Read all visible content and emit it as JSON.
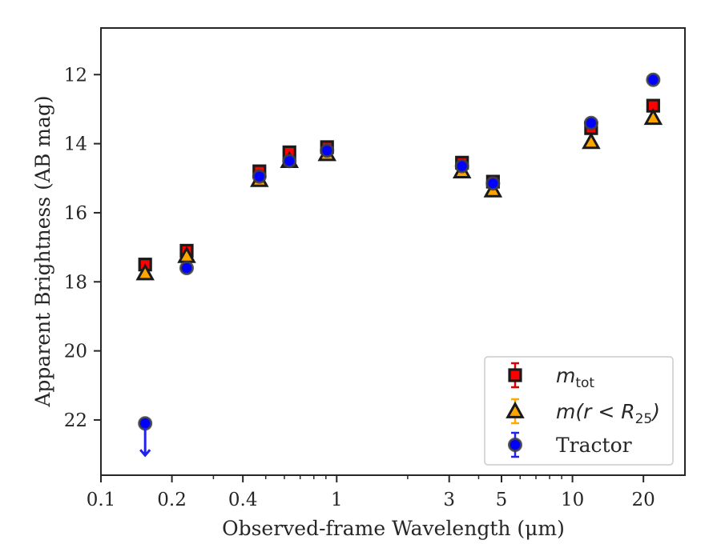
{
  "chart_data": {
    "type": "scatter",
    "title": "",
    "xlabel": "Observed-frame Wavelength (μm)",
    "ylabel": "Apparent Brightness (AB mag)",
    "xscale": "log",
    "xlim": [
      0.1,
      30
    ],
    "ylim": [
      23.6,
      10.65
    ],
    "y_inverted": true,
    "x_ticks": [
      0.1,
      0.2,
      0.4,
      1,
      3,
      5,
      10,
      20
    ],
    "x_tick_labels": [
      "0.1",
      "0.2",
      "0.4",
      "1",
      "3",
      "5",
      "10",
      "20"
    ],
    "y_ticks": [
      12,
      14,
      16,
      18,
      20,
      22
    ],
    "y_tick_labels": [
      "12",
      "14",
      "16",
      "18",
      "20",
      "22"
    ],
    "grid": false,
    "legend_position": "lower-right",
    "series": [
      {
        "name": "m_tot",
        "legend_main": "m",
        "legend_sub": "tot",
        "marker": "square",
        "color": "#ff0000",
        "edge_color": "#1a1a1a",
        "x": [
          0.154,
          0.231,
          0.47,
          0.63,
          0.91,
          3.4,
          4.6,
          12.0,
          22.0
        ],
        "y": [
          17.5,
          17.1,
          14.8,
          14.25,
          14.1,
          14.55,
          15.1,
          13.55,
          12.9
        ]
      },
      {
        "name": "m(r < R25)",
        "legend_main": "m(r < R",
        "legend_sub": "25",
        "legend_end": ")",
        "marker": "triangle",
        "color": "#ffa500",
        "edge_color": "#1a1a1a",
        "x": [
          0.154,
          0.231,
          0.47,
          0.63,
          0.91,
          3.4,
          4.6,
          12.0,
          22.0
        ],
        "y": [
          17.75,
          17.25,
          15.05,
          14.5,
          14.3,
          14.8,
          15.35,
          13.95,
          13.25
        ]
      },
      {
        "name": "Tractor",
        "legend_main": "Tractor",
        "marker": "circle",
        "color": "#0000ff",
        "edge_color": "#404040",
        "x": [
          0.154,
          0.231,
          0.47,
          0.63,
          0.91,
          3.4,
          4.6,
          12.0,
          22.0
        ],
        "y": [
          22.1,
          17.6,
          14.95,
          14.5,
          14.2,
          14.65,
          15.15,
          13.4,
          12.15
        ],
        "upper_limit_index": 0
      }
    ]
  }
}
